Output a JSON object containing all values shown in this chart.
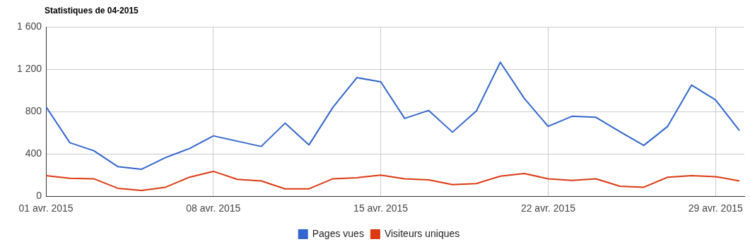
{
  "chart_data": {
    "type": "line",
    "title": "Statistiques de 04-2015",
    "x": [
      "2015-04-01",
      "2015-04-02",
      "2015-04-03",
      "2015-04-04",
      "2015-04-05",
      "2015-04-06",
      "2015-04-07",
      "2015-04-08",
      "2015-04-09",
      "2015-04-10",
      "2015-04-11",
      "2015-04-12",
      "2015-04-13",
      "2015-04-14",
      "2015-04-15",
      "2015-04-16",
      "2015-04-17",
      "2015-04-18",
      "2015-04-19",
      "2015-04-20",
      "2015-04-21",
      "2015-04-22",
      "2015-04-23",
      "2015-04-24",
      "2015-04-25",
      "2015-04-26",
      "2015-04-27",
      "2015-04-28",
      "2015-04-29",
      "2015-04-30"
    ],
    "series": [
      {
        "name": "Pages vues",
        "color": "#3366cc",
        "values": [
          845,
          505,
          430,
          280,
          255,
          365,
          450,
          570,
          520,
          470,
          690,
          485,
          840,
          1120,
          1080,
          735,
          810,
          605,
          805,
          1265,
          925,
          660,
          755,
          745,
          610,
          480,
          660,
          1050,
          910,
          620
        ]
      },
      {
        "name": "Visiteurs uniques",
        "color": "#dc3912",
        "values": [
          195,
          170,
          165,
          75,
          55,
          85,
          180,
          235,
          160,
          145,
          70,
          70,
          165,
          175,
          200,
          165,
          155,
          110,
          120,
          190,
          215,
          165,
          150,
          165,
          95,
          85,
          180,
          195,
          185,
          145
        ]
      }
    ],
    "xlim": [
      "2015-04-01",
      "2015-04-30T05:00"
    ],
    "xticks": [
      {
        "value": "2015-04-01",
        "label": "01 avr. 2015"
      },
      {
        "value": "2015-04-08",
        "label": "08 avr. 2015"
      },
      {
        "value": "2015-04-15",
        "label": "15 avr. 2015"
      },
      {
        "value": "2015-04-22",
        "label": "22 avr. 2015"
      },
      {
        "value": "2015-04-29",
        "label": "29 avr. 2015"
      }
    ],
    "ylim": [
      0,
      1600
    ],
    "yticks": [
      0,
      400,
      800,
      {
        "value": 1200,
        "label": "1 200"
      },
      {
        "value": 1600,
        "label": "1 600"
      }
    ],
    "grid": true,
    "legend": "bottom",
    "marker": "none",
    "line_style": "solid"
  }
}
